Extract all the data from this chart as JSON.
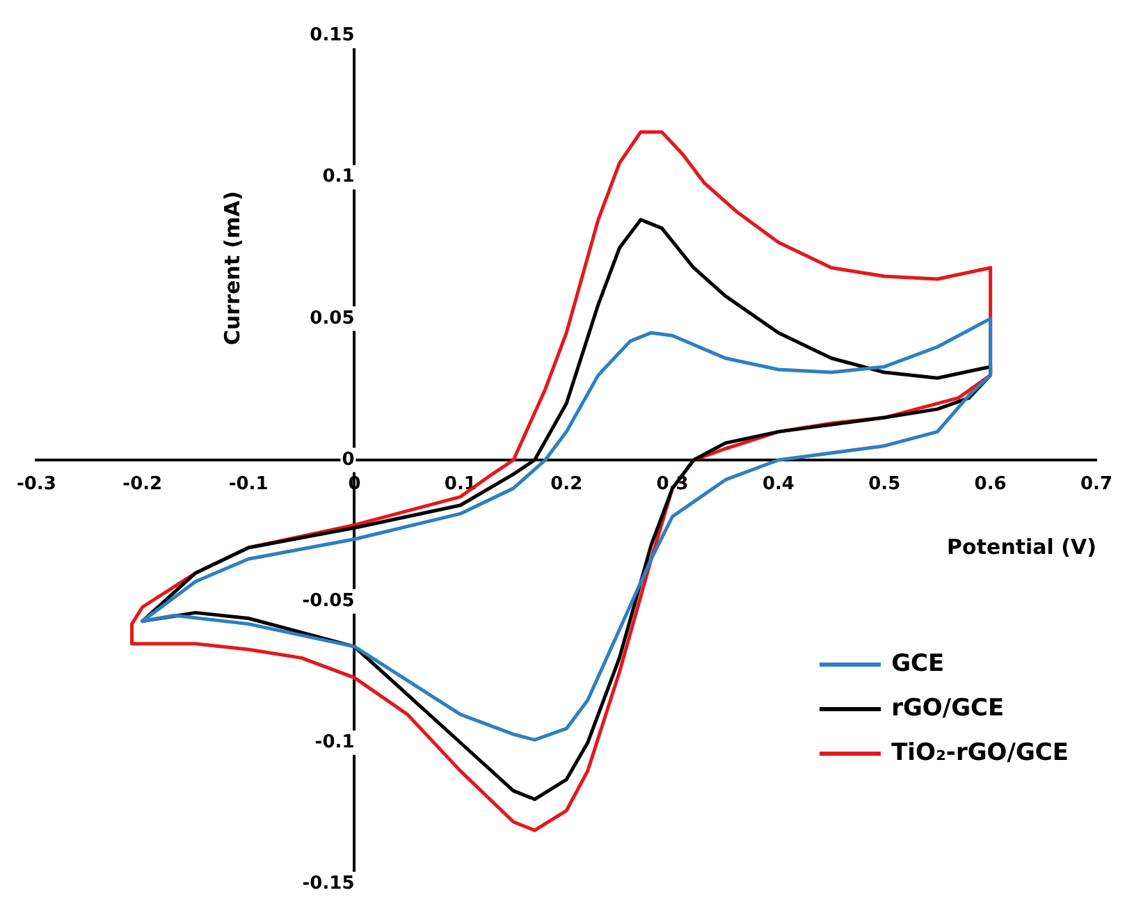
{
  "chart_data": {
    "type": "line",
    "xlabel": "Potential (V)",
    "ylabel": "Current (mA)",
    "xlim": [
      -0.3,
      0.7
    ],
    "ylim": [
      -0.15,
      0.15
    ],
    "xticks": [
      -0.3,
      -0.2,
      -0.1,
      0,
      0.1,
      0.2,
      0.3,
      0.4,
      0.5,
      0.6,
      0.7
    ],
    "yticks": [
      -0.15,
      -0.1,
      -0.05,
      0,
      0.05,
      0.1,
      0.15
    ],
    "grid": false,
    "legend": "bottom right",
    "marker": "none",
    "line_style": "solid",
    "series": [
      {
        "name": "GCE",
        "color": "#2e7fc1",
        "x": [
          -0.2,
          -0.15,
          -0.1,
          0,
          0.1,
          0.15,
          0.18,
          0.2,
          0.23,
          0.26,
          0.28,
          0.3,
          0.35,
          0.4,
          0.45,
          0.5,
          0.55,
          0.6
        ],
        "values": [
          -0.057,
          -0.043,
          -0.035,
          -0.028,
          -0.019,
          -0.01,
          0,
          0.01,
          0.03,
          0.042,
          0.045,
          0.044,
          0.036,
          0.032,
          0.031,
          0.033,
          0.04,
          0.05
        ]
      },
      {
        "color": "#2e7fc1",
        "x": [
          0.6,
          0.6,
          0.58,
          0.55,
          0.5,
          0.4,
          0.35,
          0.3,
          0.28,
          0.25,
          0.22,
          0.2,
          0.17,
          0.15,
          0.1,
          0.05,
          0,
          -0.1,
          -0.17,
          -0.2
        ],
        "values": [
          0.05,
          0.03,
          0.023,
          0.01,
          0.005,
          0,
          -0.007,
          -0.02,
          -0.035,
          -0.06,
          -0.085,
          -0.095,
          -0.099,
          -0.097,
          -0.09,
          -0.078,
          -0.066,
          -0.058,
          -0.055,
          -0.057
        ]
      },
      {
        "name": "rGO/GCE",
        "color": "#000000",
        "x": [
          -0.2,
          -0.15,
          -0.1,
          0,
          0.1,
          0.15,
          0.17,
          0.2,
          0.23,
          0.25,
          0.27,
          0.29,
          0.32,
          0.35,
          0.4,
          0.45,
          0.5,
          0.55,
          0.6
        ],
        "values": [
          -0.057,
          -0.04,
          -0.031,
          -0.024,
          -0.016,
          -0.005,
          0,
          0.02,
          0.055,
          0.075,
          0.085,
          0.082,
          0.068,
          0.058,
          0.045,
          0.036,
          0.031,
          0.029,
          0.033
        ]
      },
      {
        "color": "#000000",
        "x": [
          0.6,
          0.6,
          0.58,
          0.55,
          0.5,
          0.4,
          0.35,
          0.32,
          0.3,
          0.28,
          0.25,
          0.22,
          0.2,
          0.17,
          0.15,
          0.1,
          0.05,
          0,
          -0.1,
          -0.15,
          -0.2
        ],
        "values": [
          0.033,
          0.03,
          0.022,
          0.018,
          0.015,
          0.01,
          0.006,
          0,
          -0.01,
          -0.03,
          -0.07,
          -0.1,
          -0.113,
          -0.12,
          -0.117,
          -0.1,
          -0.083,
          -0.066,
          -0.056,
          -0.054,
          -0.057
        ]
      },
      {
        "name": "TiO₂-rGO/GCE",
        "color": "#e3191c",
        "x": [
          -0.21,
          -0.2,
          -0.15,
          -0.1,
          0,
          0.1,
          0.13,
          0.15,
          0.18,
          0.2,
          0.23,
          0.25,
          0.27,
          0.29,
          0.31,
          0.33,
          0.36,
          0.4,
          0.45,
          0.5,
          0.55,
          0.6
        ],
        "values": [
          -0.058,
          -0.052,
          -0.04,
          -0.031,
          -0.023,
          -0.013,
          -0.005,
          0,
          0.025,
          0.045,
          0.085,
          0.105,
          0.116,
          0.116,
          0.108,
          0.098,
          0.088,
          0.077,
          0.068,
          0.065,
          0.064,
          0.068
        ]
      },
      {
        "color": "#e3191c",
        "x": [
          0.6,
          0.6,
          0.57,
          0.5,
          0.45,
          0.4,
          0.35,
          0.32,
          0.3,
          0.28,
          0.25,
          0.22,
          0.2,
          0.17,
          0.15,
          0.1,
          0.05,
          0,
          -0.05,
          -0.1,
          -0.15,
          -0.21,
          -0.21
        ],
        "values": [
          0.068,
          0.03,
          0.022,
          0.015,
          0.013,
          0.01,
          0.004,
          0,
          -0.01,
          -0.035,
          -0.075,
          -0.11,
          -0.124,
          -0.131,
          -0.128,
          -0.11,
          -0.09,
          -0.077,
          -0.07,
          -0.067,
          -0.065,
          -0.065,
          -0.058
        ]
      }
    ]
  }
}
